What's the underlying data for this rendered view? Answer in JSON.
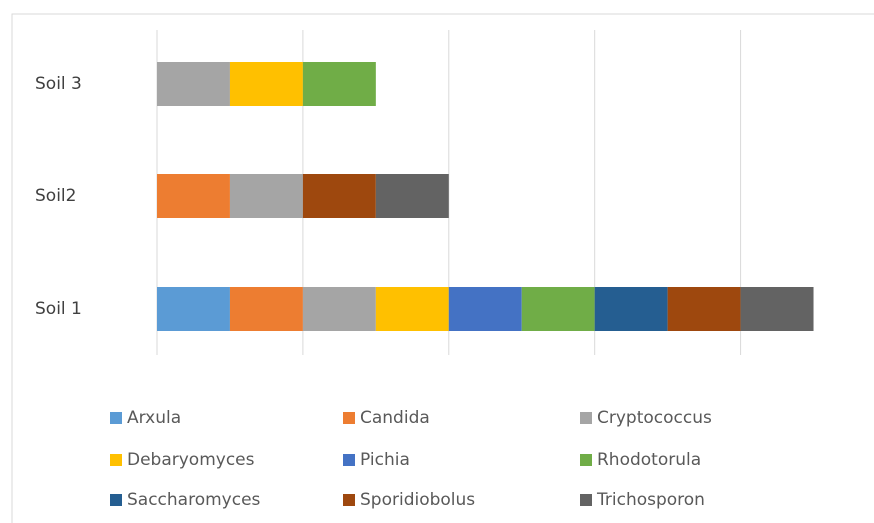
{
  "chart_data": {
    "type": "stacked-barh",
    "categories": [
      "Soil 1",
      "Soil2",
      "Soil 3"
    ],
    "series": [
      {
        "name": "Arxula",
        "color": "#5b9bd5",
        "values": [
          1,
          0,
          0
        ]
      },
      {
        "name": "Candida",
        "color": "#ed7d31",
        "values": [
          1,
          1,
          0
        ]
      },
      {
        "name": "Cryptococcus",
        "color": "#a5a5a5",
        "values": [
          1,
          1,
          1
        ]
      },
      {
        "name": "Debaryomyces",
        "color": "#ffc000",
        "values": [
          1,
          0,
          1
        ]
      },
      {
        "name": "Pichia",
        "color": "#4472c4",
        "values": [
          1,
          0,
          0
        ]
      },
      {
        "name": "Rhodotorula",
        "color": "#70ad47",
        "values": [
          1,
          0,
          1
        ]
      },
      {
        "name": "Saccharomyces",
        "color": "#255e91",
        "values": [
          1,
          0,
          0
        ]
      },
      {
        "name": "Sporidiobolus",
        "color": "#9e480e",
        "values": [
          1,
          1,
          0
        ]
      },
      {
        "name": "Trichosporon",
        "color": "#636363",
        "values": [
          1,
          1,
          0
        ]
      }
    ],
    "xlim": [
      0,
      9.5
    ],
    "xticks": [
      0,
      2,
      4,
      6,
      8
    ],
    "grid": true,
    "legend": "bottom"
  }
}
